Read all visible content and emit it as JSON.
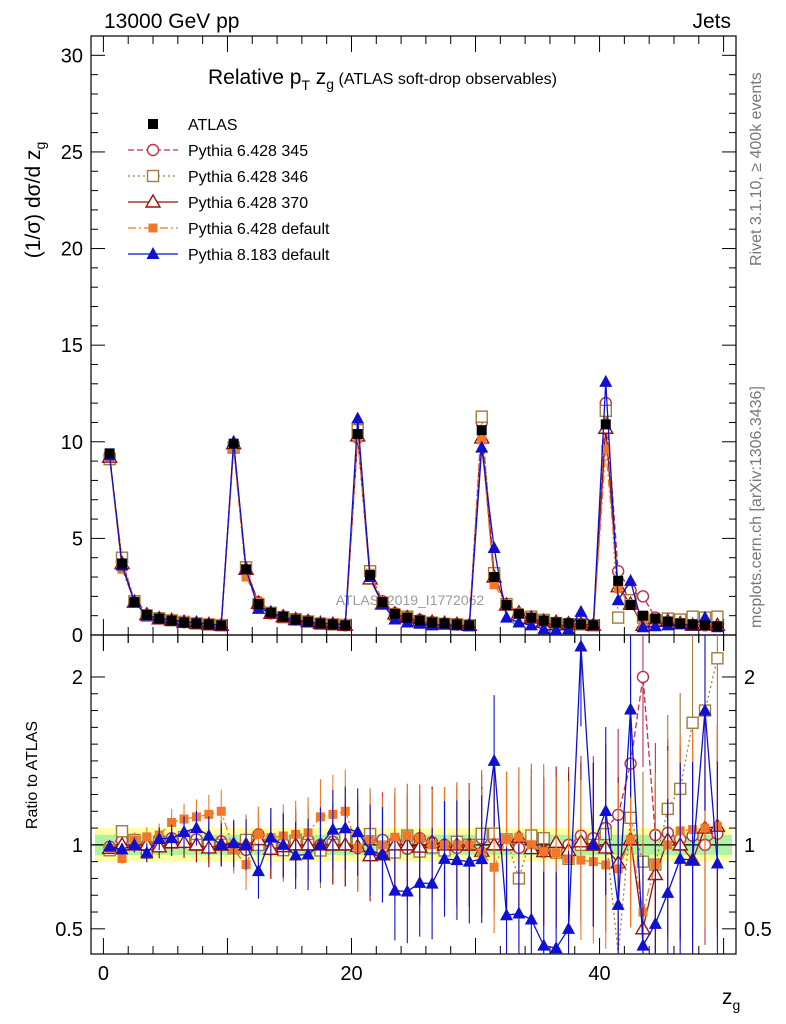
{
  "header": {
    "left": "13000 GeV pp",
    "right": "Jets",
    "side_top": "Rivet 3.1.10, ≥ 400k events",
    "side_bottom": "mcplots.cern.ch [arXiv:1306.3436]",
    "watermark": "ATLAS_2019_I1772062"
  },
  "chart_data": [
    {
      "type": "line",
      "panel": "main",
      "title": "Relative p_T z_g (ATLAS soft-drop observables)",
      "title_parts": {
        "main": "Relative p",
        "sub": "T",
        "mid": " z",
        "sub2": "g",
        "rest": " (ATLAS soft-drop observables)"
      },
      "ylabel": "(1/σ) dσ/d z_g",
      "xlabel": "z_g",
      "xlim": [
        -1,
        51
      ],
      "ylim": [
        0,
        31
      ],
      "yticks": [
        0,
        5,
        10,
        15,
        20,
        25,
        30
      ],
      "xticks": [
        0,
        20,
        40
      ],
      "ytick_labels": [
        "0",
        "5",
        "10",
        "15",
        "20",
        "25",
        "30"
      ],
      "xtick_labels": [
        "0",
        "20",
        "40"
      ],
      "x": [
        0.5,
        1.5,
        2.5,
        3.5,
        4.5,
        5.5,
        6.5,
        7.5,
        8.5,
        9.5,
        10.5,
        11.5,
        12.5,
        13.5,
        14.5,
        15.5,
        16.5,
        17.5,
        18.5,
        19.5,
        20.5,
        21.5,
        22.5,
        23.5,
        24.5,
        25.5,
        26.5,
        27.5,
        28.5,
        29.5,
        30.5,
        31.5,
        32.5,
        33.5,
        34.5,
        35.5,
        36.5,
        37.5,
        38.5,
        39.5,
        40.5,
        41.5,
        42.5,
        43.5,
        44.5,
        45.5,
        46.5,
        47.5,
        48.5,
        49.5
      ],
      "reference": {
        "name": "ATLAS",
        "values": [
          9.4,
          3.7,
          1.7,
          1.05,
          0.85,
          0.75,
          0.65,
          0.6,
          0.55,
          0.5,
          9.9,
          3.4,
          1.6,
          1.15,
          0.95,
          0.8,
          0.7,
          0.6,
          0.55,
          0.5,
          10.4,
          3.1,
          1.7,
          1.1,
          0.9,
          0.75,
          0.65,
          0.6,
          0.55,
          0.5,
          10.6,
          3.0,
          1.55,
          1.1,
          0.9,
          0.75,
          0.65,
          0.6,
          0.55,
          0.5,
          10.9,
          2.8,
          1.55,
          1.0,
          0.85,
          0.7,
          0.6,
          0.55,
          0.5,
          0.45
        ]
      },
      "series": [
        {
          "name": "Pythia 6.428 345",
          "color": "#c0304a",
          "marker": "circle-open",
          "dash": "6,3",
          "values": [
            9.3,
            3.8,
            1.75,
            1.05,
            0.88,
            0.78,
            0.66,
            0.62,
            0.56,
            0.51,
            9.8,
            3.3,
            1.7,
            1.12,
            0.96,
            0.8,
            0.72,
            0.6,
            0.56,
            0.5,
            10.2,
            3.2,
            1.75,
            1.12,
            0.88,
            0.78,
            0.66,
            0.6,
            0.54,
            0.5,
            11.0,
            3.1,
            1.6,
            1.08,
            0.92,
            0.72,
            0.62,
            0.6,
            0.58,
            0.52,
            12.0,
            3.3,
            2.3,
            2.0,
            0.9,
            0.75,
            0.62,
            0.58,
            0.5,
            0.48
          ]
        },
        {
          "name": "Pythia 6.428 346",
          "color": "#a07d3a",
          "marker": "square-open",
          "dash": "2,3",
          "values": [
            9.1,
            4.0,
            1.75,
            1.0,
            0.86,
            0.76,
            0.68,
            0.6,
            0.55,
            0.5,
            9.7,
            3.5,
            1.6,
            1.15,
            0.92,
            0.82,
            0.7,
            0.58,
            0.55,
            0.52,
            10.6,
            3.3,
            1.65,
            1.05,
            0.95,
            0.72,
            0.64,
            0.58,
            0.56,
            0.5,
            11.3,
            3.2,
            1.6,
            0.88,
            0.95,
            0.78,
            0.62,
            0.55,
            0.55,
            0.5,
            11.6,
            0.9,
            1.8,
            0.9,
            0.75,
            0.85,
            0.8,
            0.95,
            0.9,
            0.95
          ]
        },
        {
          "name": "Pythia 6.428 370",
          "color": "#9a1010",
          "marker": "triangle-open",
          "dash": "",
          "values": [
            9.2,
            3.7,
            1.7,
            1.05,
            0.84,
            0.76,
            0.66,
            0.6,
            0.54,
            0.5,
            9.9,
            3.4,
            1.65,
            1.12,
            0.94,
            0.8,
            0.7,
            0.6,
            0.55,
            0.5,
            10.3,
            2.9,
            1.6,
            1.1,
            0.9,
            0.74,
            0.66,
            0.6,
            0.55,
            0.5,
            10.2,
            3.0,
            1.55,
            1.15,
            0.88,
            0.72,
            0.66,
            0.58,
            0.56,
            0.5,
            10.7,
            2.5,
            1.6,
            0.5,
            0.7,
            0.72,
            0.6,
            0.5,
            0.55,
            0.5
          ]
        },
        {
          "name": "Pythia 6.428 default",
          "color": "#f07828",
          "marker": "square-filled",
          "dash": "8,3,2,3",
          "values": [
            9.2,
            3.4,
            1.75,
            1.1,
            0.9,
            0.85,
            0.75,
            0.7,
            0.65,
            0.6,
            9.6,
            3.0,
            1.7,
            1.2,
            1.0,
            0.85,
            0.75,
            0.7,
            0.65,
            0.6,
            10.2,
            3.2,
            1.7,
            1.15,
            0.95,
            0.78,
            0.65,
            0.6,
            0.55,
            0.5,
            10.1,
            2.6,
            1.6,
            1.15,
            0.9,
            0.72,
            0.62,
            0.55,
            0.5,
            0.45,
            9.6,
            2.4,
            1.6,
            0.6,
            0.75,
            0.7,
            0.65,
            0.6,
            0.55,
            0.5
          ]
        },
        {
          "name": "Pythia 8.183 default",
          "color": "#1010d0",
          "marker": "triangle-filled",
          "dash": "",
          "values": [
            9.3,
            3.6,
            1.7,
            1.0,
            0.88,
            0.78,
            0.7,
            0.66,
            0.58,
            0.5,
            10.0,
            3.4,
            1.35,
            1.2,
            0.95,
            0.75,
            0.66,
            0.6,
            0.6,
            0.55,
            11.2,
            3.0,
            1.6,
            0.8,
            0.65,
            0.58,
            0.5,
            0.55,
            0.5,
            0.45,
            9.7,
            4.5,
            0.9,
            0.65,
            0.5,
            0.3,
            0.25,
            0.3,
            1.2,
            0.5,
            13.1,
            1.8,
            2.8,
            0.4,
            0.45,
            0.5,
            0.55,
            0.5,
            0.9,
            0.4
          ]
        }
      ],
      "legend": [
        "ATLAS",
        "Pythia 6.428 345",
        "Pythia 6.428 346",
        "Pythia 6.428 370",
        "Pythia 6.428 default",
        "Pythia 8.183 default"
      ],
      "legend_position": "top-left"
    },
    {
      "type": "line",
      "panel": "ratio",
      "ylabel": "Ratio to ATLAS",
      "xlabel": "z_g",
      "ylim": [
        0.35,
        2.25
      ],
      "yticks": [
        0.5,
        1,
        2
      ],
      "ytick_labels": [
        "0.5",
        "1",
        "2"
      ],
      "band_inner": 0.06,
      "band_outer": 0.1
    }
  ]
}
